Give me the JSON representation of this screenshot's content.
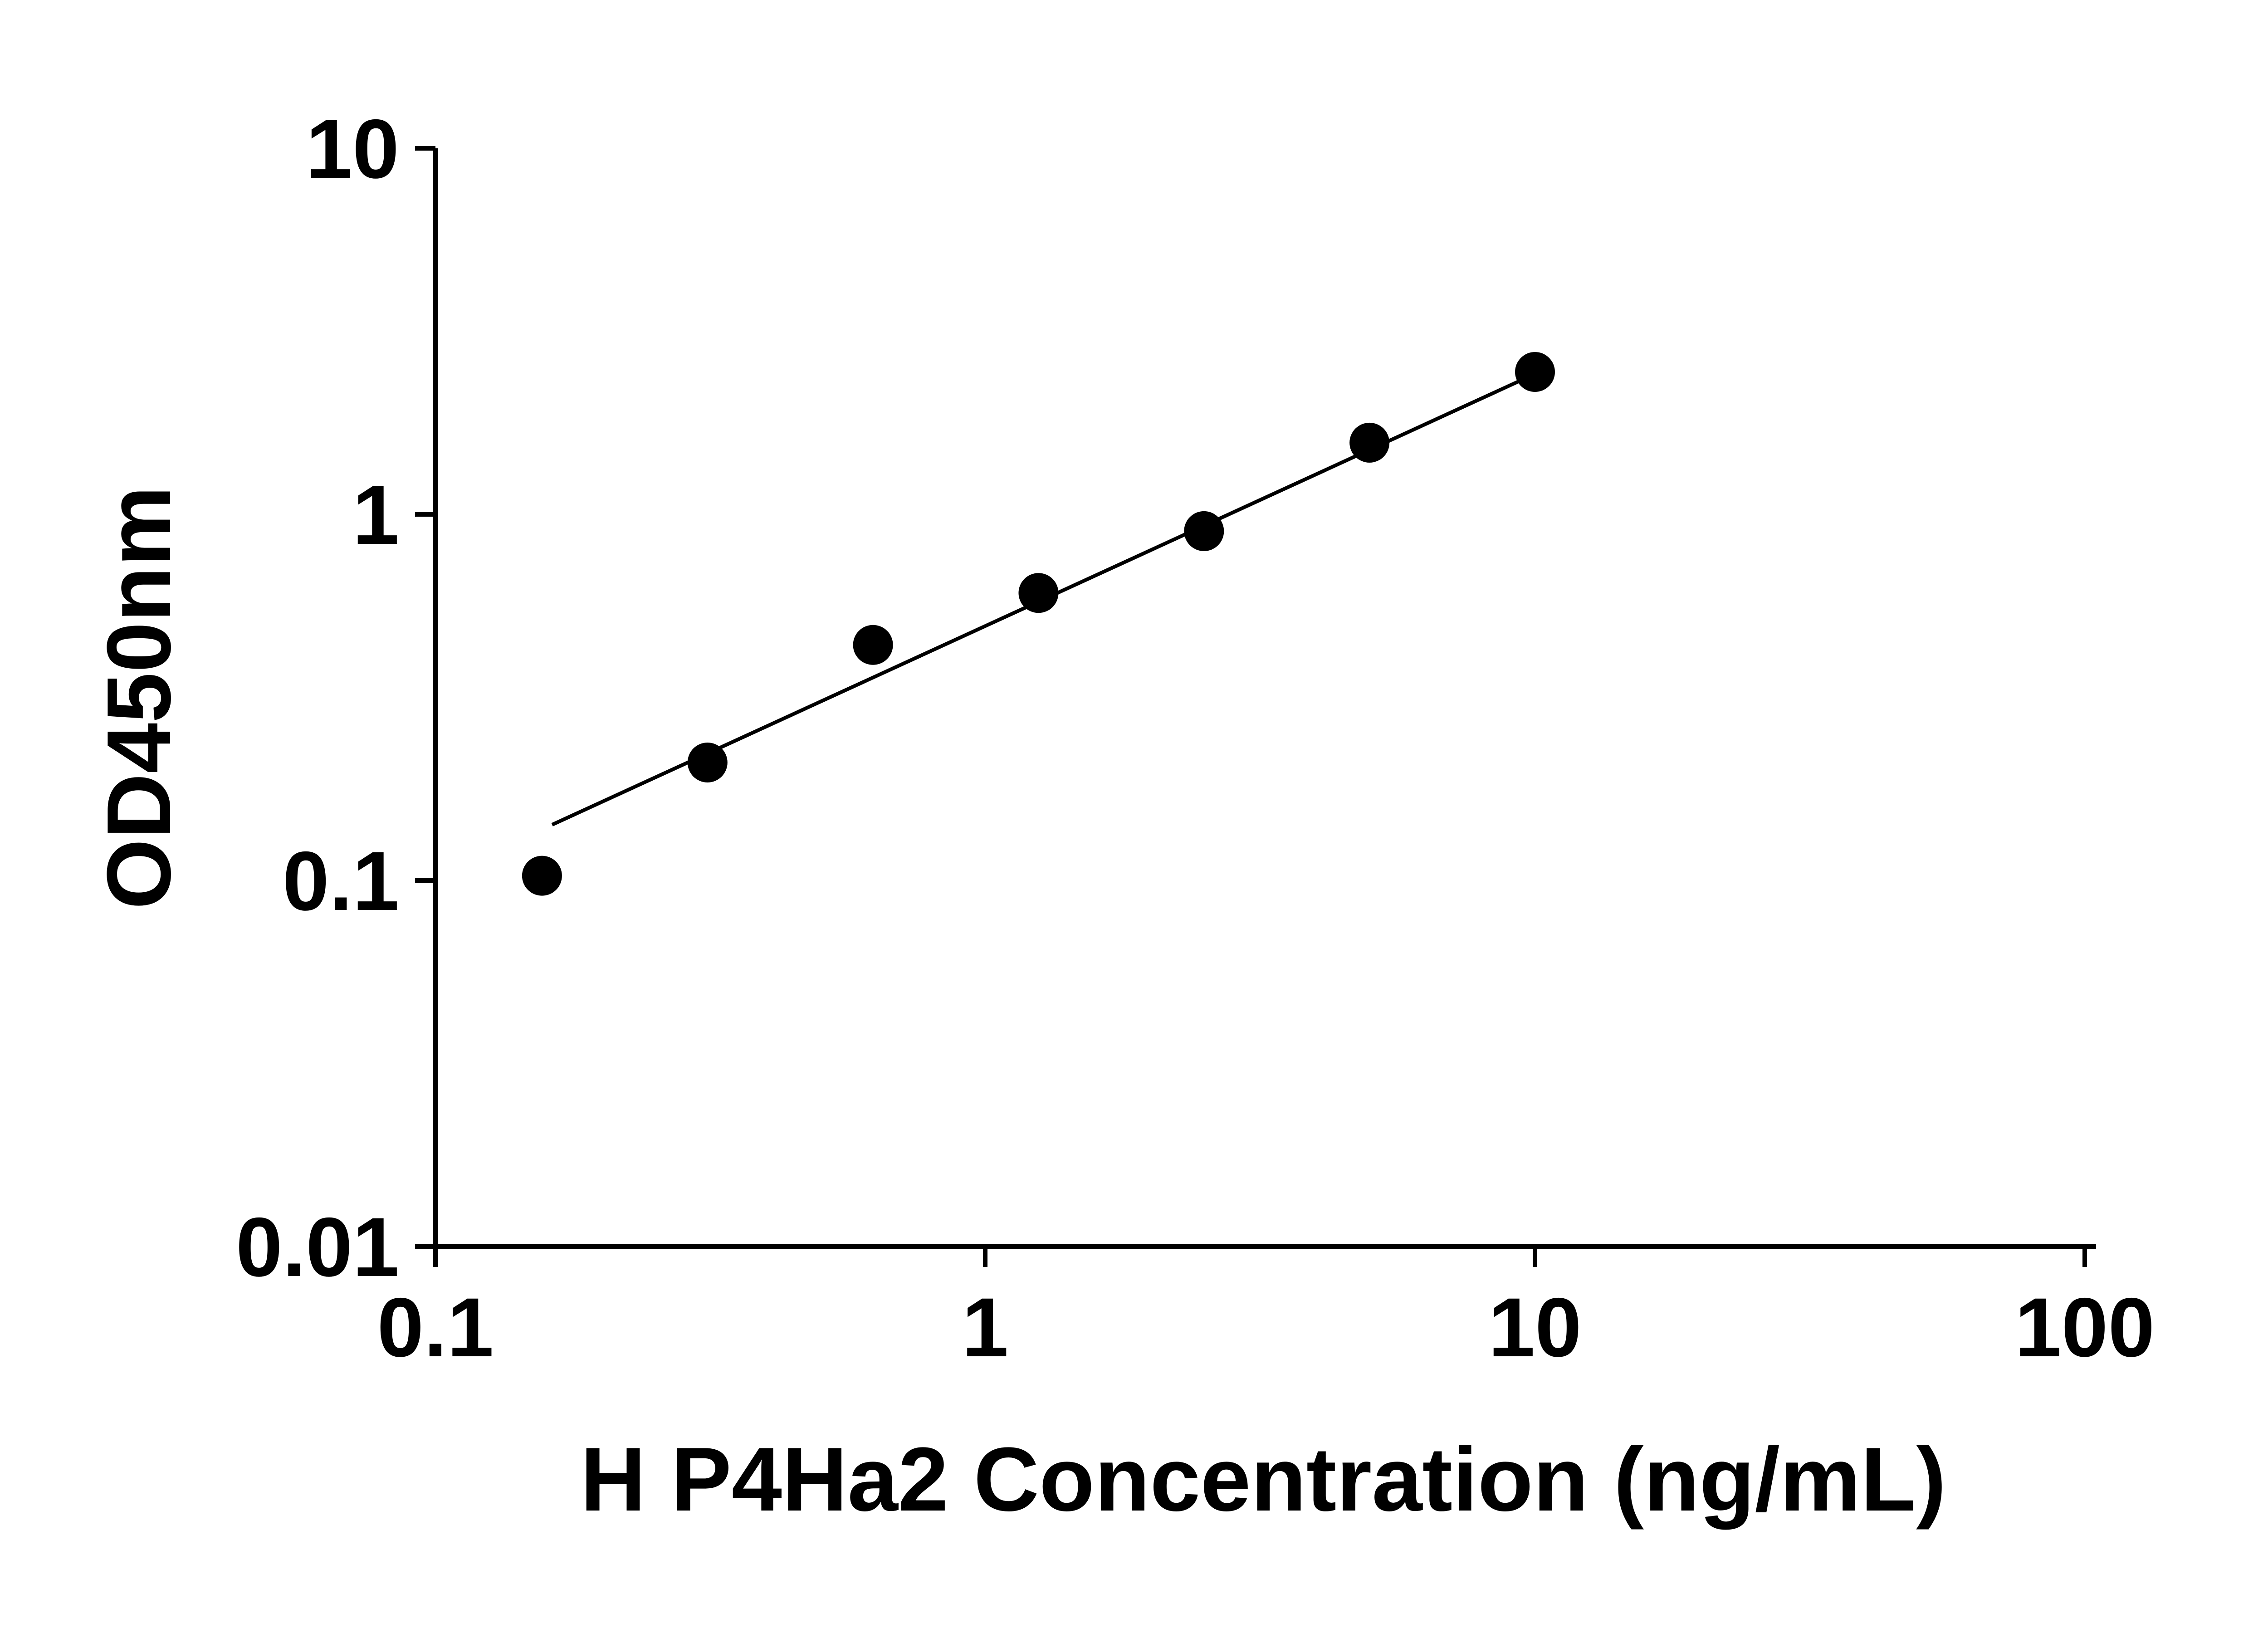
{
  "chart_data": {
    "type": "scatter",
    "title": "",
    "xlabel": "H P4Ha2 Concentration (ng/mL)",
    "ylabel": "OD450nm",
    "x_scale": "log",
    "y_scale": "log",
    "xlim": [
      0.1,
      100
    ],
    "ylim": [
      0.01,
      10
    ],
    "x_ticks": [
      0.1,
      1,
      10,
      100
    ],
    "x_tick_labels": [
      "0.1",
      "1",
      "10",
      "100"
    ],
    "y_ticks": [
      0.01,
      0.1,
      1,
      10
    ],
    "y_tick_labels": [
      "0.01",
      "0.1",
      "1",
      "10"
    ],
    "grid": false,
    "legend_position": "none",
    "series": [
      {
        "name": "standard-curve-points",
        "type": "scatter",
        "marker": "circle",
        "color": "#000000",
        "points": [
          {
            "x": 0.15625,
            "y": 0.103
          },
          {
            "x": 0.3125,
            "y": 0.21
          },
          {
            "x": 0.625,
            "y": 0.44
          },
          {
            "x": 1.25,
            "y": 0.61
          },
          {
            "x": 2.5,
            "y": 0.9
          },
          {
            "x": 5,
            "y": 1.57
          },
          {
            "x": 10,
            "y": 2.45
          }
        ]
      },
      {
        "name": "fit-line",
        "type": "line",
        "color": "#000000",
        "points": [
          {
            "x": 0.163,
            "y": 0.142
          },
          {
            "x": 10.0,
            "y": 2.42
          }
        ]
      }
    ],
    "colors": {
      "foreground": "#000000",
      "background": "#ffffff"
    }
  }
}
